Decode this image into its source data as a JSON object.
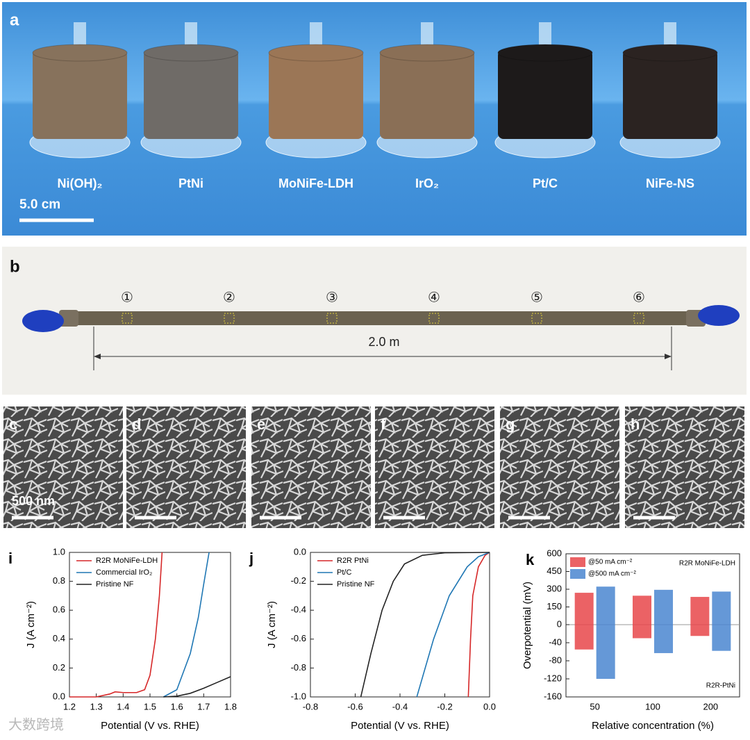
{
  "panels": {
    "a": {
      "letter": "a",
      "labels": [
        "Ni(OH)₂",
        "PtNi",
        "MoNiFe-LDH",
        "IrO₂",
        "Pt/C",
        "NiFe-NS"
      ],
      "scale": "5.0 cm"
    },
    "b": {
      "letter": "b",
      "markers": [
        "①",
        "②",
        "③",
        "④",
        "⑤",
        "⑥"
      ],
      "length": "2.0 m"
    },
    "sem": {
      "letters": [
        "c",
        "d",
        "e",
        "f",
        "g",
        "h"
      ],
      "scale": "500 nm"
    },
    "watermark": "大数跨境"
  },
  "chart_data": [
    {
      "type": "line",
      "letter": "i",
      "xlabel": "Potential (V vs. RHE)",
      "ylabel": "J (A cm⁻²)",
      "xlim": [
        1.2,
        1.8
      ],
      "xticks": [
        1.2,
        1.3,
        1.4,
        1.5,
        1.6,
        1.7,
        1.8
      ],
      "ylim": [
        0,
        1
      ],
      "yticks": [
        {
          "value": 0,
          "label": "0.0"
        },
        0.2,
        0.4,
        0.6,
        0.8,
        {
          "value": 1,
          "label": "1.0"
        }
      ],
      "series": [
        {
          "name": "R2R MoNiFe-LDH",
          "color": "#d62728",
          "x": [
            1.2,
            1.3,
            1.35,
            1.37,
            1.4,
            1.45,
            1.48,
            1.5,
            1.52,
            1.535,
            1.545
          ],
          "values": [
            0,
            0,
            0.02,
            0.035,
            0.03,
            0.03,
            0.05,
            0.15,
            0.4,
            0.7,
            1.0
          ]
        },
        {
          "name": "Commercial IrO₂",
          "color": "#1f77b4",
          "x": [
            1.55,
            1.6,
            1.65,
            1.68,
            1.7,
            1.72
          ],
          "values": [
            0,
            0.05,
            0.3,
            0.55,
            0.78,
            1.0
          ]
        },
        {
          "name": "Pristine NF",
          "color": "#222222",
          "x": [
            1.55,
            1.6,
            1.65,
            1.7,
            1.75,
            1.8
          ],
          "values": [
            0,
            0.005,
            0.025,
            0.06,
            0.1,
            0.14
          ]
        }
      ]
    },
    {
      "type": "line",
      "letter": "j",
      "xlabel": "Potential (V vs. RHE)",
      "ylabel": "J (A cm⁻²)",
      "xlim": [
        -0.8,
        0
      ],
      "xticks": [
        -0.8,
        -0.6,
        -0.4,
        -0.2,
        {
          "value": 0,
          "label": "0.0"
        }
      ],
      "ylim": [
        -1,
        0
      ],
      "yticks": [
        {
          "value": -1,
          "label": "-1.0"
        },
        -0.8,
        -0.6,
        -0.4,
        -0.2,
        {
          "value": 0,
          "label": "0.0"
        }
      ],
      "series": [
        {
          "name": "R2R PtNi",
          "color": "#d62728",
          "x": [
            -0.095,
            -0.085,
            -0.075,
            -0.05,
            -0.02,
            0
          ],
          "values": [
            -1,
            -0.6,
            -0.3,
            -0.1,
            -0.02,
            0
          ]
        },
        {
          "name": "Pt/C",
          "color": "#1f77b4",
          "x": [
            -0.325,
            -0.25,
            -0.18,
            -0.1,
            -0.05,
            0
          ],
          "values": [
            -1,
            -0.6,
            -0.3,
            -0.1,
            -0.03,
            0
          ]
        },
        {
          "name": "Pristine NF",
          "color": "#222222",
          "x": [
            -0.575,
            -0.53,
            -0.48,
            -0.43,
            -0.38,
            -0.3,
            -0.2,
            0
          ],
          "values": [
            -1,
            -0.7,
            -0.4,
            -0.2,
            -0.08,
            -0.02,
            -0.003,
            0
          ]
        }
      ]
    },
    {
      "type": "bar",
      "letter": "k",
      "xlabel": "Relative concentration (%)",
      "ylabel": "Overpotential (mV)",
      "annotations": [
        "R2R MoNiFe-LDH",
        "R2R-PtNi"
      ],
      "categories": [
        "50",
        "100",
        "200"
      ],
      "ylim": [
        0,
        600
      ],
      "yticks": [
        0,
        150,
        300,
        450,
        600
      ],
      "y2lim": [
        -160,
        0
      ],
      "y2ticks": [
        -40,
        -80,
        -120,
        -160
      ],
      "series": [
        {
          "name": "@50 mA cm⁻²",
          "color": "#e8474a",
          "values": [
            270,
            245,
            235
          ],
          "values_y2": [
            -55,
            -30,
            -25
          ]
        },
        {
          "name": "@500 mA cm⁻²",
          "color": "#4a86d0",
          "values": [
            322,
            295,
            280
          ],
          "values_y2": [
            -120,
            -63,
            -58
          ]
        }
      ]
    }
  ]
}
